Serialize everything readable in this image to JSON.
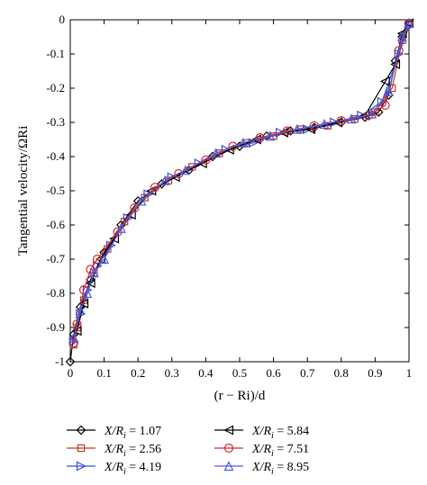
{
  "chart_data": {
    "type": "line",
    "xlabel": "(r − Ri)/d",
    "ylabel": "Tangential velocity/ΩRi",
    "xlim": [
      0,
      1
    ],
    "ylim": [
      -1,
      0
    ],
    "x_ticks": [
      "0",
      "0.1",
      "0.2",
      "0.3",
      "0.4",
      "0.5",
      "0.6",
      "0.7",
      "0.8",
      "0.9",
      "1"
    ],
    "y_ticks": [
      "0",
      "-0.1",
      "-0.2",
      "-0.3",
      "-0.4",
      "-0.5",
      "-0.6",
      "-0.7",
      "-0.8",
      "-0.9",
      "-1"
    ],
    "grid": false,
    "legend_position": "bottom",
    "series": [
      {
        "name": "X/Ri = 1.07",
        "label_lhs": "X/R",
        "label_sub": "i",
        "label_rhs": " = 1.07",
        "color": "#000000",
        "marker": "diamond",
        "x": [
          0.0,
          0.01,
          0.03,
          0.06,
          0.1,
          0.15,
          0.2,
          0.27,
          0.35,
          0.42,
          0.5,
          0.58,
          0.65,
          0.72,
          0.8,
          0.87,
          0.91,
          0.94,
          0.96,
          0.98,
          1.0
        ],
        "y": [
          -1.0,
          -0.92,
          -0.84,
          -0.76,
          -0.68,
          -0.6,
          -0.53,
          -0.48,
          -0.44,
          -0.4,
          -0.37,
          -0.34,
          -0.325,
          -0.315,
          -0.3,
          -0.285,
          -0.27,
          -0.22,
          -0.12,
          -0.05,
          -0.01
        ]
      },
      {
        "name": "X/Ri = 2.56",
        "label_lhs": "X/R",
        "label_sub": "i",
        "label_rhs": " = 2.56",
        "color": "#c0392b",
        "marker": "square",
        "x": [
          0.01,
          0.02,
          0.04,
          0.07,
          0.11,
          0.16,
          0.22,
          0.29,
          0.36,
          0.44,
          0.52,
          0.6,
          0.68,
          0.76,
          0.84,
          0.9,
          0.95,
          0.98,
          1.0
        ],
        "y": [
          -0.95,
          -0.9,
          -0.82,
          -0.74,
          -0.67,
          -0.59,
          -0.52,
          -0.47,
          -0.43,
          -0.39,
          -0.36,
          -0.34,
          -0.32,
          -0.31,
          -0.29,
          -0.27,
          -0.2,
          -0.06,
          -0.01
        ]
      },
      {
        "name": "X/Ri = 4.19",
        "label_lhs": "X/R",
        "label_sub": "i",
        "label_rhs": " = 4.19",
        "color": "#3a4fd8",
        "marker": "triangle-right",
        "x": [
          0.01,
          0.03,
          0.05,
          0.08,
          0.12,
          0.17,
          0.23,
          0.3,
          0.38,
          0.46,
          0.54,
          0.62,
          0.7,
          0.78,
          0.86,
          0.92,
          0.97,
          1.0
        ],
        "y": [
          -0.94,
          -0.86,
          -0.79,
          -0.72,
          -0.66,
          -0.58,
          -0.51,
          -0.46,
          -0.42,
          -0.38,
          -0.36,
          -0.33,
          -0.32,
          -0.3,
          -0.28,
          -0.24,
          -0.1,
          -0.02
        ]
      },
      {
        "name": "X/Ri = 5.84",
        "label_lhs": "X/R",
        "label_sub": "i",
        "label_rhs": " = 5.84",
        "color": "#000000",
        "marker": "triangle-left",
        "x": [
          0.02,
          0.04,
          0.06,
          0.09,
          0.13,
          0.18,
          0.24,
          0.31,
          0.39,
          0.47,
          0.55,
          0.63,
          0.71,
          0.79,
          0.87,
          0.93,
          0.96,
          0.98,
          1.0
        ],
        "y": [
          -0.91,
          -0.83,
          -0.77,
          -0.7,
          -0.64,
          -0.57,
          -0.5,
          -0.46,
          -0.42,
          -0.38,
          -0.35,
          -0.33,
          -0.32,
          -0.3,
          -0.28,
          -0.18,
          -0.13,
          -0.04,
          -0.01
        ]
      },
      {
        "name": "X/Ri = 7.51",
        "label_lhs": "X/R",
        "label_sub": "i",
        "label_rhs": " = 7.51",
        "color": "#d9282f",
        "marker": "circle",
        "x": [
          0.01,
          0.02,
          0.04,
          0.06,
          0.08,
          0.14,
          0.19,
          0.25,
          0.32,
          0.4,
          0.48,
          0.56,
          0.64,
          0.72,
          0.8,
          0.88,
          0.93,
          0.97,
          1.0
        ],
        "y": [
          -0.945,
          -0.89,
          -0.79,
          -0.73,
          -0.7,
          -0.62,
          -0.55,
          -0.49,
          -0.45,
          -0.41,
          -0.37,
          -0.345,
          -0.325,
          -0.31,
          -0.295,
          -0.28,
          -0.25,
          -0.09,
          -0.01
        ]
      },
      {
        "name": "X/Ri = 8.95",
        "label_lhs": "X/R",
        "label_sub": "i",
        "label_rhs": " = 8.95",
        "color": "#4a5fe0",
        "marker": "triangle-up",
        "x": [
          0.01,
          0.03,
          0.05,
          0.07,
          0.1,
          0.15,
          0.21,
          0.28,
          0.34,
          0.43,
          0.51,
          0.59,
          0.67,
          0.75,
          0.83,
          0.89,
          0.94,
          0.98,
          1.0
        ],
        "y": [
          -0.93,
          -0.85,
          -0.8,
          -0.74,
          -0.7,
          -0.61,
          -0.53,
          -0.47,
          -0.44,
          -0.39,
          -0.36,
          -0.34,
          -0.32,
          -0.305,
          -0.29,
          -0.275,
          -0.21,
          -0.05,
          -0.01
        ]
      }
    ]
  }
}
